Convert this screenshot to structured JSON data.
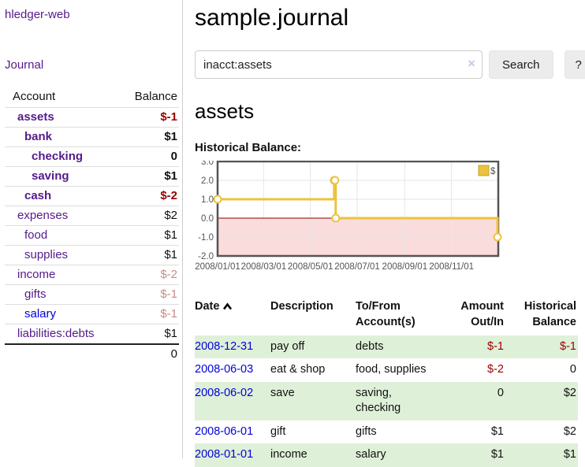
{
  "app": {
    "brand": "hledger-web"
  },
  "sidebar": {
    "journal_link": "Journal",
    "accounts_table": {
      "headers": {
        "account": "Account",
        "balance": "Balance"
      },
      "rows": [
        {
          "name": "assets",
          "depth": 1,
          "bold": true,
          "name_color": "purple",
          "balance": "$-1",
          "balance_color": "red-strong",
          "balance_bold": true
        },
        {
          "name": "bank",
          "depth": 2,
          "bold": true,
          "name_color": "purple",
          "balance": "$1",
          "balance_color": "black",
          "balance_bold": true
        },
        {
          "name": "checking",
          "depth": 3,
          "bold": true,
          "name_color": "purple",
          "balance": "0",
          "balance_color": "black",
          "balance_bold": true
        },
        {
          "name": "saving",
          "depth": 3,
          "bold": true,
          "name_color": "purple",
          "balance": "$1",
          "balance_color": "black",
          "balance_bold": true
        },
        {
          "name": "cash",
          "depth": 2,
          "bold": true,
          "name_color": "purple",
          "balance": "$-2",
          "balance_color": "red-strong",
          "balance_bold": true
        },
        {
          "name": "expenses",
          "depth": 1,
          "bold": false,
          "name_color": "purple",
          "balance": "$2",
          "balance_color": "black",
          "balance_bold": false
        },
        {
          "name": "food",
          "depth": 2,
          "bold": false,
          "name_color": "purple",
          "balance": "$1",
          "balance_color": "black",
          "balance_bold": false
        },
        {
          "name": "supplies",
          "depth": 2,
          "bold": false,
          "name_color": "purple",
          "balance": "$1",
          "balance_color": "black",
          "balance_bold": false
        },
        {
          "name": "income",
          "depth": 1,
          "bold": false,
          "name_color": "purple",
          "balance": "$-2",
          "balance_color": "red-soft",
          "balance_bold": false
        },
        {
          "name": "gifts",
          "depth": 2,
          "bold": false,
          "name_color": "purple",
          "balance": "$-1",
          "balance_color": "red-soft",
          "balance_bold": false
        },
        {
          "name": "salary",
          "depth": 2,
          "bold": false,
          "name_color": "blue",
          "balance": "$-1",
          "balance_color": "red-soft",
          "balance_bold": false
        },
        {
          "name": "liabilities:debts",
          "depth": 1,
          "bold": false,
          "name_color": "purple",
          "balance": "$1",
          "balance_color": "black",
          "balance_bold": false
        }
      ],
      "total": "0"
    }
  },
  "main": {
    "title": "sample.journal",
    "search": {
      "value": "inacct:assets",
      "clear_icon": "×",
      "search_button": "Search",
      "help_button": "?"
    },
    "account_heading": "assets",
    "chart_label": "Historical Balance:"
  },
  "chart_data": {
    "type": "line",
    "style": "steps",
    "title": "Historical Balance:",
    "series": [
      {
        "name": "$",
        "color": "#edc240",
        "points": [
          [
            "2008-01-01",
            1
          ],
          [
            "2008-06-01",
            2
          ],
          [
            "2008-06-02",
            2
          ],
          [
            "2008-06-03",
            0
          ],
          [
            "2008-12-31",
            -1
          ]
        ]
      }
    ],
    "x_range": [
      "2008-01-01",
      "2009-01-01"
    ],
    "ylim": [
      -2,
      3
    ],
    "y_ticks": [
      3.0,
      2.0,
      1.0,
      0.0,
      -1.0,
      -2.0
    ],
    "x_ticks": [
      {
        "date": "2008-01-01",
        "label": "2008/01/01"
      },
      {
        "date": "2008-03-01",
        "label": "2008/03/01"
      },
      {
        "date": "2008-05-01",
        "label": "2008/05/01"
      },
      {
        "date": "2008-07-01",
        "label": "2008/07/01"
      },
      {
        "date": "2008-09-01",
        "label": "2008/09/01"
      },
      {
        "date": "2008-11-01",
        "label": "2008/11/01"
      }
    ],
    "legend": {
      "label": "$",
      "position": "top-right"
    },
    "grid": true,
    "negative_region_color": "#fbdcdc",
    "zero_line_color": "#8b0000",
    "border_color": "#545454"
  },
  "register_table": {
    "headers": {
      "date": "Date",
      "description": "Description",
      "accounts_line1": "To/From",
      "accounts_line2": "Account(s)",
      "amount_line1": "Amount",
      "amount_line2": "Out/In",
      "balance_line1": "Historical",
      "balance_line2": "Balance"
    },
    "rows": [
      {
        "date": "2008-12-31",
        "description": "pay off",
        "accounts": "debts",
        "amount": "$-1",
        "amount_color": "red",
        "balance": "$-1",
        "balance_color": "red"
      },
      {
        "date": "2008-06-03",
        "description": "eat & shop",
        "accounts": "food, supplies",
        "amount": "$-2",
        "amount_color": "red",
        "balance": "0",
        "balance_color": "black"
      },
      {
        "date": "2008-06-02",
        "description": "save",
        "accounts": "saving, checking",
        "amount": "0",
        "amount_color": "black",
        "balance": "$2",
        "balance_color": "black"
      },
      {
        "date": "2008-06-01",
        "description": "gift",
        "accounts": "gifts",
        "amount": "$1",
        "amount_color": "black",
        "balance": "$2",
        "balance_color": "black"
      },
      {
        "date": "2008-01-01",
        "description": "income",
        "accounts": "salary",
        "amount": "$1",
        "amount_color": "black",
        "balance": "$1",
        "balance_color": "black"
      }
    ]
  },
  "colors": {
    "link_purple": "#551a8b",
    "link_blue": "#0000dd",
    "negative_strong": "#990000",
    "negative_soft": "#c98a8a",
    "row_stripe_green": "#dff0d8",
    "series_gold": "#edc240"
  }
}
